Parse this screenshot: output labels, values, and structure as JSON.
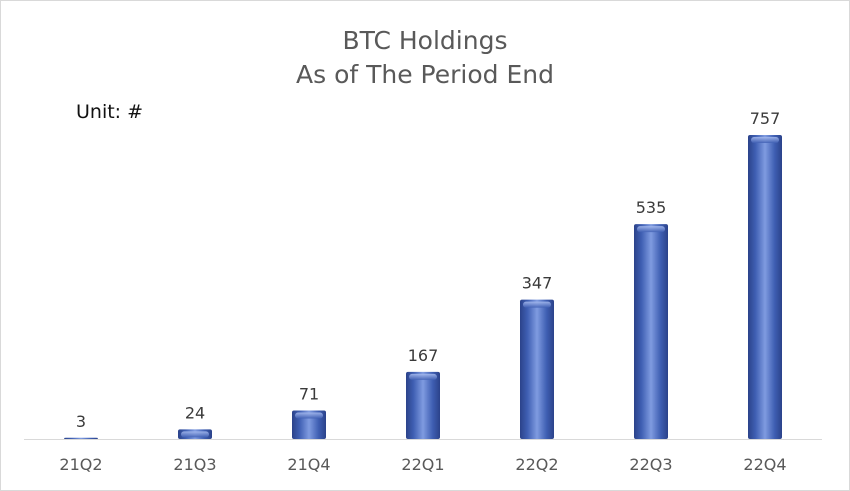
{
  "chart_data": {
    "type": "bar",
    "title": "BTC Holdings",
    "subtitle": "As of The Period End",
    "unit_label": "Unit: #",
    "categories": [
      "21Q2",
      "21Q3",
      "21Q4",
      "22Q1",
      "22Q2",
      "22Q3",
      "22Q4"
    ],
    "values": [
      3,
      24,
      71,
      167,
      347,
      535,
      757
    ],
    "ylim": [
      0,
      757
    ],
    "grid": false,
    "legend": "none",
    "bar_color": "#3f5fb3",
    "bar_highlight": "#7f9be0",
    "bar_shadow": "#2b428a"
  }
}
